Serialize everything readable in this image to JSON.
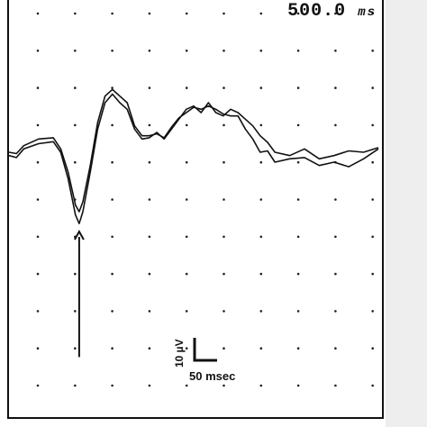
{
  "sweep": {
    "value": "500.0",
    "unit": "ms"
  },
  "scale_bar": {
    "amplitude_label": "10 µV",
    "time_label": "50 msec"
  },
  "chart_data": {
    "type": "line",
    "title": "",
    "xlabel": "",
    "ylabel": "",
    "x_unit": "msec",
    "y_unit": "µV",
    "grid": "dotted",
    "xlim": [
      0,
      500
    ],
    "ylim": [
      -40,
      20
    ],
    "series": [
      {
        "x": [
          0,
          10,
          20,
          40,
          60,
          70,
          80,
          90,
          95,
          100,
          110,
          120,
          130,
          140,
          150,
          160,
          170,
          180,
          190,
          200,
          210,
          220,
          230,
          240,
          250,
          260,
          270,
          280,
          290,
          300,
          310,
          320,
          330,
          340,
          350,
          360,
          380,
          400,
          420,
          440,
          460,
          480,
          500
        ],
        "y": [
          -1.5,
          -1.8,
          -0.5,
          0.3,
          0.6,
          -1.0,
          -5.0,
          -10.5,
          -11.8,
          -10.0,
          -4.0,
          2.5,
          6.5,
          7.8,
          6.5,
          5.5,
          2.5,
          1.0,
          1.2,
          2.0,
          1.0,
          2.5,
          4.0,
          5.5,
          6.0,
          5.0,
          6.5,
          5.0,
          4.5,
          5.5,
          5.0,
          4.0,
          3.0,
          1.5,
          0.5,
          -1.0,
          -1.5,
          -0.5,
          -2.0,
          -1.5,
          -0.8,
          -1.0,
          -0.3
        ]
      },
      {
        "x": [
          0,
          10,
          20,
          40,
          60,
          70,
          80,
          90,
          95,
          100,
          110,
          120,
          130,
          140,
          150,
          160,
          170,
          180,
          190,
          200,
          210,
          220,
          230,
          240,
          250,
          260,
          270,
          280,
          290,
          300,
          310,
          320,
          330,
          340,
          350,
          360,
          380,
          400,
          420,
          440,
          460,
          480,
          500
        ],
        "y": [
          -1.0,
          -1.2,
          0.0,
          1.0,
          1.2,
          -0.5,
          -4.0,
          -9.0,
          -10.0,
          -8.5,
          -3.0,
          3.5,
          7.5,
          8.5,
          7.5,
          6.5,
          3.0,
          1.5,
          1.5,
          1.8,
          1.2,
          2.8,
          4.2,
          5.0,
          5.8,
          5.5,
          6.0,
          5.5,
          4.8,
          4.5,
          4.5,
          2.5,
          1.0,
          -1.0,
          -0.8,
          -2.5,
          -2.0,
          -1.8,
          -3.0,
          -2.5,
          -3.2,
          -2.0,
          -0.5
        ]
      }
    ],
    "annotations": [
      {
        "kind": "arrow",
        "x": 95,
        "y": -32,
        "points_to_y": -13
      }
    ]
  }
}
